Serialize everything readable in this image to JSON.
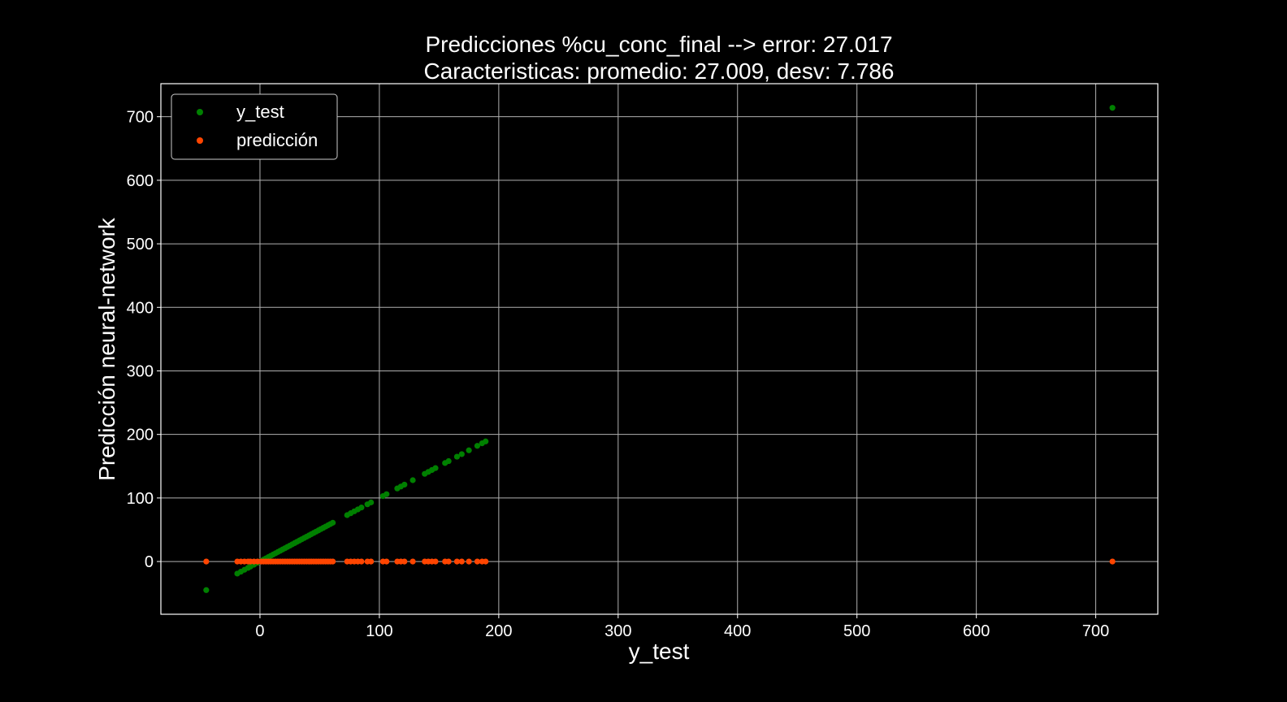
{
  "chart_data": {
    "type": "scatter",
    "title": "Predicciones %cu_conc_final --> error: 27.017",
    "subtitle": "Caracteristicas: promedio: 27.009, desv: 7.786",
    "xlabel": "y_test",
    "ylabel": "Predicción neural-network",
    "xlim": [
      -83,
      752
    ],
    "ylim": [
      -83,
      752
    ],
    "xticks": [
      0,
      100,
      200,
      300,
      400,
      500,
      600,
      700
    ],
    "yticks": [
      0,
      100,
      200,
      300,
      400,
      500,
      600,
      700
    ],
    "grid": true,
    "legend_position": "top-left",
    "series": [
      {
        "name": "y_test",
        "color": "#008000",
        "x": [
          -45,
          -19,
          -16,
          -13,
          -10,
          -8,
          -5,
          -2,
          1,
          3,
          5,
          7,
          9,
          11,
          13,
          15,
          17,
          19,
          21,
          23,
          25,
          27,
          29,
          31,
          33,
          35,
          37,
          39,
          41,
          43,
          45,
          47,
          49,
          51,
          53,
          55,
          57,
          59,
          61,
          73,
          76,
          79,
          82,
          85,
          90,
          93,
          103,
          106,
          115,
          118,
          121,
          128,
          138,
          141,
          144,
          147,
          155,
          158,
          165,
          169,
          175,
          182,
          186,
          189,
          714
        ],
        "y": [
          -45,
          -19,
          -16,
          -13,
          -10,
          -8,
          -5,
          -2,
          1,
          3,
          5,
          7,
          9,
          11,
          13,
          15,
          17,
          19,
          21,
          23,
          25,
          27,
          29,
          31,
          33,
          35,
          37,
          39,
          41,
          43,
          45,
          47,
          49,
          51,
          53,
          55,
          57,
          59,
          61,
          73,
          76,
          79,
          82,
          85,
          90,
          93,
          103,
          106,
          115,
          118,
          121,
          128,
          138,
          141,
          144,
          147,
          155,
          158,
          165,
          169,
          175,
          182,
          186,
          189,
          714
        ]
      },
      {
        "name": "predicción",
        "color": "#ff4500",
        "x": [
          -45,
          -19,
          -16,
          -13,
          -10,
          -8,
          -5,
          -2,
          1,
          3,
          5,
          7,
          9,
          11,
          13,
          15,
          17,
          19,
          21,
          23,
          25,
          27,
          29,
          31,
          33,
          35,
          37,
          39,
          41,
          43,
          45,
          47,
          49,
          51,
          53,
          55,
          57,
          59,
          61,
          73,
          76,
          79,
          82,
          85,
          90,
          93,
          103,
          106,
          115,
          118,
          121,
          128,
          138,
          141,
          144,
          147,
          155,
          158,
          165,
          169,
          175,
          182,
          186,
          189,
          714
        ],
        "y": [
          0,
          0,
          0,
          0,
          0,
          0,
          0,
          0,
          0,
          0,
          0,
          0,
          0,
          0,
          0,
          0,
          0,
          0,
          0,
          0,
          0,
          0,
          0,
          0,
          0,
          0,
          0,
          0,
          0,
          0,
          0,
          0,
          0,
          0,
          0,
          0,
          0,
          0,
          0,
          0,
          0,
          0,
          0,
          0,
          0,
          0,
          0,
          0,
          0,
          0,
          0,
          0,
          0,
          0,
          0,
          0,
          0,
          0,
          0,
          0,
          0,
          0,
          0,
          0,
          0
        ]
      }
    ]
  }
}
